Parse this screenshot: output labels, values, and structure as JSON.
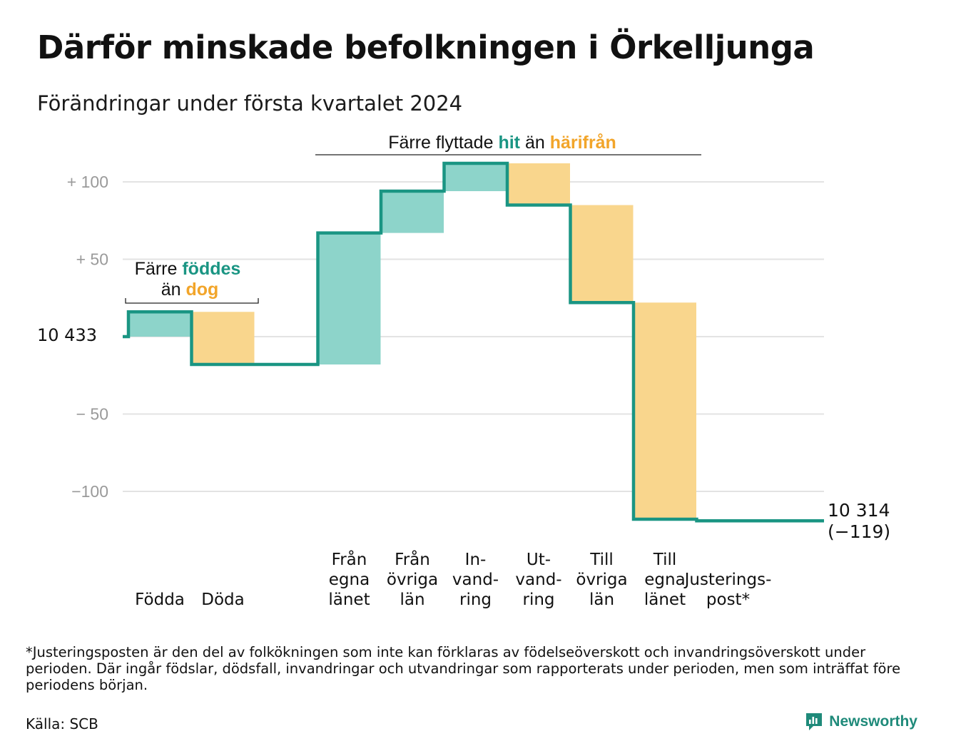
{
  "header": {
    "title": "Därför minskade befolkningen i Örkelljunga",
    "subtitle": "Förändringar under första kvartalet 2024"
  },
  "annotations": {
    "births_deaths": {
      "line1": "Färre",
      "line1_highlight": "föddes",
      "line2": "än",
      "line2_highlight": "dog"
    },
    "migration": {
      "text": "Färre flyttade",
      "highlight_in": "hit",
      "mid": "än",
      "highlight_out": "härifrån"
    }
  },
  "colors": {
    "line": "#1a9583",
    "in_fill": "#8dd4ca",
    "out_fill": "#f9d68d",
    "in_text": "#1a9583",
    "out_text": "#f2a52a",
    "grid": "#e3e3e3"
  },
  "chart_data": {
    "type": "waterfall",
    "start_value_label": "10  433",
    "start_value": 10433,
    "end_value_label": "10 314",
    "end_change_label": "(−119)",
    "end_value": 10314,
    "y_axis": {
      "ticks": [
        100,
        50,
        0,
        -50,
        -100
      ],
      "tick_labels": [
        "+  100",
        "+  50",
        "",
        "−  50",
        "−100"
      ],
      "ylim": [
        -125,
        115
      ],
      "grid": true
    },
    "steps": [
      {
        "key": "fodda",
        "label": [
          "Födda"
        ],
        "change": 16,
        "kind": "in"
      },
      {
        "key": "doda",
        "label": [
          "Döda"
        ],
        "change": -34,
        "kind": "out"
      },
      {
        "key": "gap",
        "label": [],
        "change": 0,
        "kind": "none"
      },
      {
        "key": "fran_egna",
        "label": [
          "Från",
          "egna",
          "länet"
        ],
        "change": 85,
        "kind": "in"
      },
      {
        "key": "fran_ovriga",
        "label": [
          "Från",
          "övriga",
          "län"
        ],
        "change": 27,
        "kind": "in"
      },
      {
        "key": "invandring",
        "label": [
          "In-",
          "vand-",
          "ring"
        ],
        "change": 18,
        "kind": "in"
      },
      {
        "key": "utvandring",
        "label": [
          "Ut-",
          "vand-",
          "ring"
        ],
        "change": -27,
        "kind": "out"
      },
      {
        "key": "till_ovriga",
        "label": [
          "Till",
          "övriga",
          "län"
        ],
        "change": -63,
        "kind": "out"
      },
      {
        "key": "till_egna",
        "label": [
          "Till",
          "egna",
          "länet"
        ],
        "change": -140,
        "kind": "out"
      },
      {
        "key": "justering",
        "label": [
          "Justerings-",
          "post*"
        ],
        "change": -1,
        "kind": "adjust"
      }
    ]
  },
  "footer": {
    "footnote": "*Justeringsposten är den del av folkökningen som inte kan förklaras av födelseöverskott och invandringsöverskott under perioden. Där ingår födslar, dödsfall, invandringar och utvandringar som rapporterats under perioden, men som inträffat före periodens början.",
    "source": "Källa: SCB",
    "brand": "Newsworthy"
  }
}
